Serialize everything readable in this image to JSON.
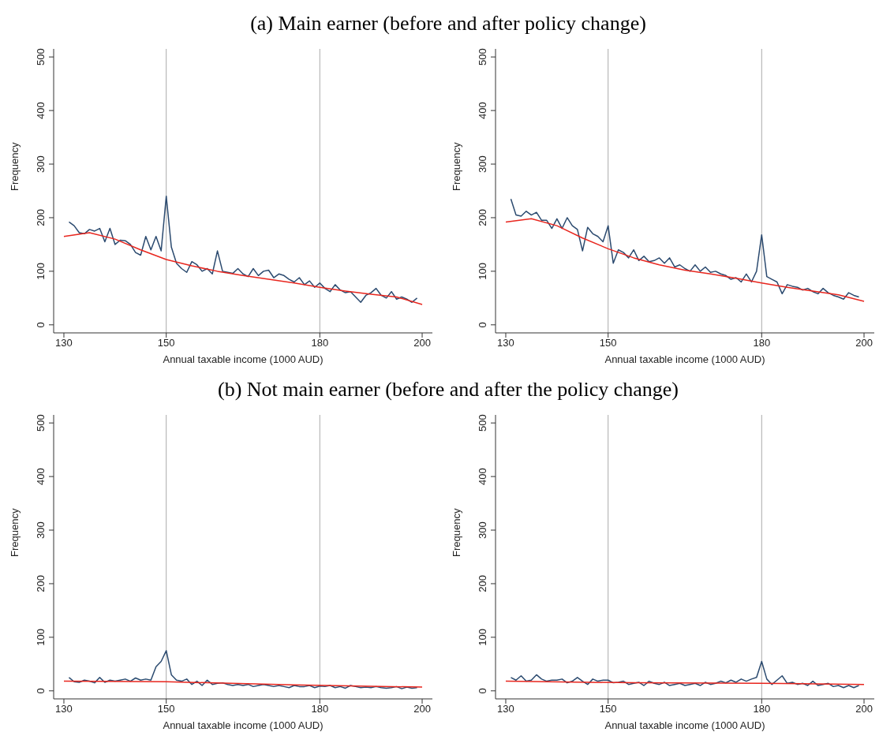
{
  "chart_data": [
    {
      "type": "line",
      "title": "(a) Main earner (before and after policy change)",
      "xlabel": "Annual taxable income (1000 AUD)",
      "ylabel": "Frequency",
      "xlim": [
        128,
        202
      ],
      "xticks": [
        130,
        150,
        180,
        200
      ],
      "ylim": [
        -15,
        515
      ],
      "yticks": [
        0,
        100,
        200,
        300,
        400,
        500
      ],
      "grid": false,
      "marker": "none",
      "ref_lines": [
        {
          "axis": "x",
          "value": 150,
          "color": "#aaaaaa"
        },
        {
          "axis": "x",
          "value": 180,
          "color": "#aaaaaa"
        }
      ],
      "series": [
        {
          "color": "#2b4a6f",
          "x": [
            131,
            132,
            133,
            134,
            135,
            136,
            137,
            138,
            139,
            140,
            141,
            142,
            143,
            144,
            145,
            146,
            147,
            148,
            149,
            150,
            151,
            152,
            153,
            154,
            155,
            156,
            157,
            158,
            159,
            160,
            161,
            162,
            163,
            164,
            165,
            166,
            167,
            168,
            169,
            170,
            171,
            172,
            173,
            174,
            175,
            176,
            177,
            178,
            179,
            180,
            181,
            182,
            183,
            184,
            185,
            186,
            187,
            188,
            189,
            190,
            191,
            192,
            193,
            194,
            195,
            196,
            197,
            198,
            199
          ],
          "values": [
            192,
            185,
            172,
            170,
            178,
            175,
            180,
            155,
            180,
            150,
            158,
            157,
            150,
            135,
            130,
            165,
            140,
            165,
            138,
            240,
            145,
            115,
            105,
            98,
            118,
            112,
            100,
            105,
            95,
            138,
            100,
            98,
            96,
            105,
            95,
            90,
            105,
            92,
            100,
            102,
            88,
            95,
            92,
            85,
            80,
            88,
            75,
            82,
            70,
            78,
            68,
            62,
            75,
            65,
            60,
            62,
            52,
            42,
            55,
            60,
            68,
            55,
            50,
            62,
            48,
            52,
            48,
            42,
            50
          ]
        },
        {
          "type": "line",
          "color": "#e8261e",
          "x": [
            130,
            135,
            140,
            145,
            150,
            155,
            160,
            165,
            170,
            175,
            180,
            185,
            190,
            195,
            200
          ],
          "values": [
            165,
            172,
            160,
            140,
            122,
            110,
            100,
            92,
            85,
            78,
            70,
            63,
            57,
            52,
            38
          ]
        }
      ]
    },
    {
      "type": "line",
      "xlabel": "Annual taxable income (1000 AUD)",
      "ylabel": "Frequency",
      "xlim": [
        128,
        202
      ],
      "xticks": [
        130,
        150,
        180,
        200
      ],
      "ylim": [
        -15,
        515
      ],
      "yticks": [
        0,
        100,
        200,
        300,
        400,
        500
      ],
      "grid": false,
      "marker": "none",
      "ref_lines": [
        {
          "axis": "x",
          "value": 150,
          "color": "#aaaaaa"
        },
        {
          "axis": "x",
          "value": 180,
          "color": "#aaaaaa"
        }
      ],
      "series": [
        {
          "color": "#2b4a6f",
          "x": [
            131,
            132,
            133,
            134,
            135,
            136,
            137,
            138,
            139,
            140,
            141,
            142,
            143,
            144,
            145,
            146,
            147,
            148,
            149,
            150,
            151,
            152,
            153,
            154,
            155,
            156,
            157,
            158,
            159,
            160,
            161,
            162,
            163,
            164,
            165,
            166,
            167,
            168,
            169,
            170,
            171,
            172,
            173,
            174,
            175,
            176,
            177,
            178,
            179,
            180,
            181,
            182,
            183,
            184,
            185,
            186,
            187,
            188,
            189,
            190,
            191,
            192,
            193,
            194,
            195,
            196,
            197,
            198,
            199
          ],
          "values": [
            235,
            205,
            203,
            212,
            205,
            210,
            195,
            195,
            180,
            198,
            180,
            200,
            185,
            178,
            138,
            182,
            170,
            165,
            155,
            185,
            115,
            140,
            135,
            125,
            140,
            120,
            128,
            118,
            120,
            125,
            115,
            125,
            108,
            112,
            105,
            100,
            112,
            100,
            108,
            98,
            100,
            95,
            92,
            85,
            88,
            80,
            95,
            80,
            100,
            168,
            90,
            85,
            80,
            58,
            75,
            72,
            70,
            65,
            68,
            62,
            58,
            68,
            60,
            55,
            52,
            48,
            60,
            55,
            52
          ]
        },
        {
          "type": "line",
          "color": "#e8261e",
          "x": [
            130,
            135,
            140,
            145,
            150,
            155,
            160,
            165,
            170,
            175,
            180,
            185,
            190,
            195,
            200
          ],
          "values": [
            192,
            198,
            185,
            162,
            142,
            125,
            112,
            102,
            95,
            87,
            78,
            70,
            63,
            56,
            44
          ]
        }
      ]
    },
    {
      "type": "line",
      "title": "(b) Not main earner (before and after the policy change)",
      "xlabel": "Annual taxable income (1000 AUD)",
      "ylabel": "Frequency",
      "xlim": [
        128,
        202
      ],
      "xticks": [
        130,
        150,
        180,
        200
      ],
      "ylim": [
        -15,
        515
      ],
      "yticks": [
        0,
        100,
        200,
        300,
        400,
        500
      ],
      "grid": false,
      "marker": "none",
      "ref_lines": [
        {
          "axis": "x",
          "value": 150,
          "color": "#aaaaaa"
        },
        {
          "axis": "x",
          "value": 180,
          "color": "#aaaaaa"
        }
      ],
      "series": [
        {
          "color": "#2b4a6f",
          "x": [
            131,
            132,
            133,
            134,
            135,
            136,
            137,
            138,
            139,
            140,
            141,
            142,
            143,
            144,
            145,
            146,
            147,
            148,
            149,
            150,
            151,
            152,
            153,
            154,
            155,
            156,
            157,
            158,
            159,
            160,
            161,
            162,
            163,
            164,
            165,
            166,
            167,
            168,
            169,
            170,
            171,
            172,
            173,
            174,
            175,
            176,
            177,
            178,
            179,
            180,
            181,
            182,
            183,
            184,
            185,
            186,
            187,
            188,
            189,
            190,
            191,
            192,
            193,
            194,
            195,
            196,
            197,
            198,
            199
          ],
          "values": [
            25,
            17,
            16,
            20,
            18,
            15,
            25,
            16,
            20,
            18,
            20,
            22,
            18,
            24,
            20,
            22,
            20,
            45,
            55,
            75,
            30,
            20,
            18,
            22,
            12,
            18,
            10,
            20,
            12,
            14,
            15,
            12,
            10,
            12,
            10,
            12,
            8,
            10,
            12,
            10,
            8,
            10,
            8,
            6,
            10,
            8,
            8,
            10,
            6,
            9,
            8,
            10,
            6,
            8,
            5,
            10,
            8,
            6,
            7,
            6,
            8,
            6,
            5,
            6,
            8,
            4,
            7,
            5,
            6
          ]
        },
        {
          "type": "line",
          "color": "#e8261e",
          "x": [
            130,
            150,
            175,
            200
          ],
          "values": [
            18,
            17,
            11,
            7
          ]
        }
      ]
    },
    {
      "type": "line",
      "xlabel": "Annual taxable income (1000 AUD)",
      "ylabel": "Frequency",
      "xlim": [
        128,
        202
      ],
      "xticks": [
        130,
        150,
        180,
        200
      ],
      "ylim": [
        -15,
        515
      ],
      "yticks": [
        0,
        100,
        200,
        300,
        400,
        500
      ],
      "grid": false,
      "marker": "none",
      "ref_lines": [
        {
          "axis": "x",
          "value": 150,
          "color": "#aaaaaa"
        },
        {
          "axis": "x",
          "value": 180,
          "color": "#aaaaaa"
        }
      ],
      "series": [
        {
          "color": "#2b4a6f",
          "x": [
            131,
            132,
            133,
            134,
            135,
            136,
            137,
            138,
            139,
            140,
            141,
            142,
            143,
            144,
            145,
            146,
            147,
            148,
            149,
            150,
            151,
            152,
            153,
            154,
            155,
            156,
            157,
            158,
            159,
            160,
            161,
            162,
            163,
            164,
            165,
            166,
            167,
            168,
            169,
            170,
            171,
            172,
            173,
            174,
            175,
            176,
            177,
            178,
            179,
            180,
            181,
            182,
            183,
            184,
            185,
            186,
            187,
            188,
            189,
            190,
            191,
            192,
            193,
            194,
            195,
            196,
            197,
            198,
            199
          ],
          "values": [
            25,
            20,
            28,
            18,
            20,
            30,
            22,
            18,
            20,
            20,
            22,
            15,
            18,
            25,
            18,
            12,
            22,
            18,
            20,
            20,
            15,
            16,
            18,
            12,
            14,
            16,
            10,
            18,
            14,
            12,
            16,
            10,
            12,
            14,
            10,
            12,
            14,
            10,
            16,
            12,
            14,
            18,
            15,
            20,
            16,
            22,
            18,
            22,
            25,
            55,
            22,
            12,
            20,
            28,
            14,
            16,
            12,
            14,
            10,
            18,
            10,
            12,
            14,
            8,
            10,
            6,
            10,
            6,
            10
          ]
        },
        {
          "type": "line",
          "color": "#e8261e",
          "x": [
            130,
            155,
            180,
            200
          ],
          "values": [
            18,
            15,
            14,
            12
          ]
        }
      ]
    }
  ]
}
